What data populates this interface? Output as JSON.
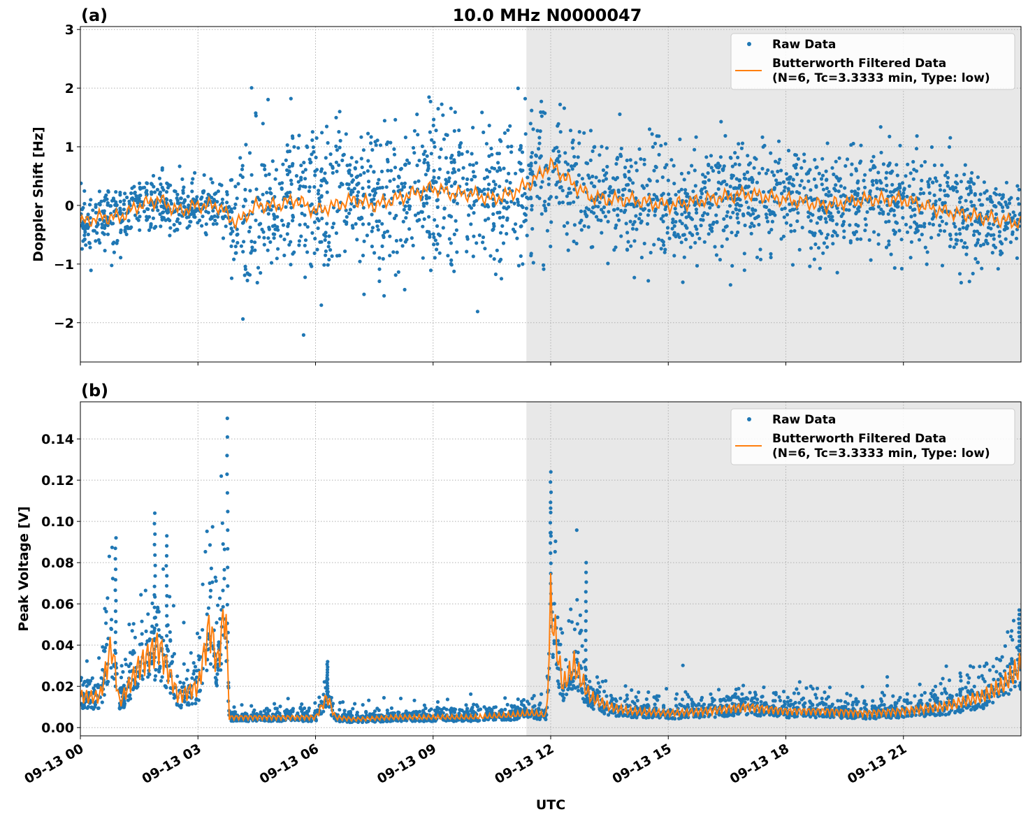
{
  "title": "10.0 MHz N0000047",
  "colors": {
    "raw": "#1f77b4",
    "filtered": "#ff7f0e",
    "shade": "#e8e8e8",
    "grid": "#b0b0b0"
  },
  "chart_data": [
    {
      "type": "scatter",
      "panel_label": "(a)",
      "ylabel": "Doppler Shift [Hz]",
      "xlabel": "",
      "xlim_hours": [
        0,
        24
      ],
      "ylim": [
        -2.67,
        3.05
      ],
      "yticks": [
        -2,
        -1,
        0,
        1,
        2,
        3
      ],
      "ytick_labels": [
        "−2",
        "−1",
        "0",
        "1",
        "2",
        "3"
      ],
      "grid": true,
      "grid_style": "dotted",
      "shaded_region_hours": [
        11.38,
        24
      ],
      "legend": {
        "placement": "top-right",
        "entries": [
          "Raw Data",
          "Butterworth Filtered Data",
          "(N=6, Tc=3.3333 min, Type: low)"
        ]
      },
      "series": [
        {
          "name": "Butterworth Filtered Data (N=6, Tc=3.3333 min, Type: low)",
          "kind": "line",
          "x": [
            0,
            0.5,
            1,
            1.5,
            2,
            2.5,
            3,
            3.5,
            3.8,
            4,
            4.5,
            5,
            5.5,
            6,
            6.5,
            7,
            7.5,
            8,
            8.5,
            9,
            9.5,
            10,
            10.5,
            11,
            11.5,
            12,
            12.5,
            13,
            13.5,
            14,
            15,
            16,
            17,
            18,
            19,
            20,
            21,
            22,
            23,
            24
          ],
          "y": [
            -0.3,
            -0.2,
            -0.2,
            0.0,
            0.1,
            -0.1,
            0.0,
            0.0,
            -0.2,
            -0.3,
            0.0,
            0.0,
            0.1,
            -0.1,
            0.0,
            0.1,
            0.0,
            0.1,
            0.2,
            0.3,
            0.2,
            0.2,
            0.1,
            0.2,
            0.4,
            0.7,
            0.4,
            0.15,
            0.1,
            0.1,
            0.0,
            0.1,
            0.2,
            0.1,
            0.0,
            0.1,
            0.1,
            -0.1,
            -0.2,
            -0.3
          ]
        },
        {
          "name": "Raw Data",
          "kind": "points",
          "note_spread_hz": "half-width of raw point band around filtered curve",
          "x": [
            0,
            3.8,
            3.85,
            12,
            12.2,
            23,
            24
          ],
          "spread": [
            0.45,
            0.45,
            1.2,
            1.2,
            0.85,
            0.8,
            0.5
          ]
        }
      ]
    },
    {
      "type": "scatter",
      "panel_label": "(b)",
      "ylabel": "Peak Voltage [V]",
      "xlabel": "UTC",
      "xlim_hours": [
        0,
        24
      ],
      "ylim": [
        -0.004,
        0.158
      ],
      "yticks": [
        0,
        0.02,
        0.04,
        0.06,
        0.08,
        0.1,
        0.12,
        0.14
      ],
      "ytick_labels": [
        "0.00",
        "0.02",
        "0.04",
        "0.06",
        "0.08",
        "0.10",
        "0.12",
        "0.14"
      ],
      "xticks_hours": [
        0,
        3,
        6,
        9,
        12,
        15,
        18,
        21
      ],
      "xtick_labels": [
        "09-13 00",
        "09-13 03",
        "09-13 06",
        "09-13 09",
        "09-13 12",
        "09-13 15",
        "09-13 18",
        "09-13 21"
      ],
      "grid": true,
      "grid_style": "dotted",
      "shaded_region_hours": [
        11.38,
        24
      ],
      "legend": {
        "placement": "top-right",
        "entries": [
          "Raw Data",
          "Butterworth Filtered Data",
          "(N=6, Tc=3.3333 min, Type: low)"
        ]
      },
      "series": [
        {
          "name": "Butterworth Filtered Data (N=6, Tc=3.3333 min, Type: low)",
          "kind": "line",
          "x": [
            0,
            0.5,
            0.8,
            1,
            1.5,
            2,
            2.5,
            3,
            3.3,
            3.5,
            3.7,
            3.8,
            4,
            5,
            6,
            6.3,
            6.5,
            7,
            8,
            9,
            10,
            11,
            11.5,
            11.9,
            12,
            12.3,
            12.6,
            13,
            13.5,
            14,
            15,
            16,
            17,
            18,
            19,
            20,
            21,
            22,
            23,
            23.5,
            24
          ],
          "y": [
            0.015,
            0.015,
            0.04,
            0.012,
            0.03,
            0.04,
            0.015,
            0.02,
            0.05,
            0.03,
            0.06,
            0.005,
            0.005,
            0.005,
            0.005,
            0.015,
            0.005,
            0.004,
            0.005,
            0.005,
            0.005,
            0.006,
            0.007,
            0.006,
            0.06,
            0.02,
            0.03,
            0.015,
            0.01,
            0.008,
            0.007,
            0.008,
            0.01,
            0.008,
            0.008,
            0.007,
            0.008,
            0.01,
            0.015,
            0.02,
            0.03
          ]
        },
        {
          "name": "Raw Data",
          "kind": "points",
          "peak_values": [
            [
              3.75,
              0.15
            ],
            [
              1.9,
              0.104
            ],
            [
              2.2,
              0.093
            ],
            [
              0.9,
              0.092
            ],
            [
              12.0,
              0.124
            ],
            [
              12.9,
              0.08
            ],
            [
              6.3,
              0.032
            ],
            [
              23.95,
              0.057
            ]
          ]
        }
      ]
    }
  ]
}
